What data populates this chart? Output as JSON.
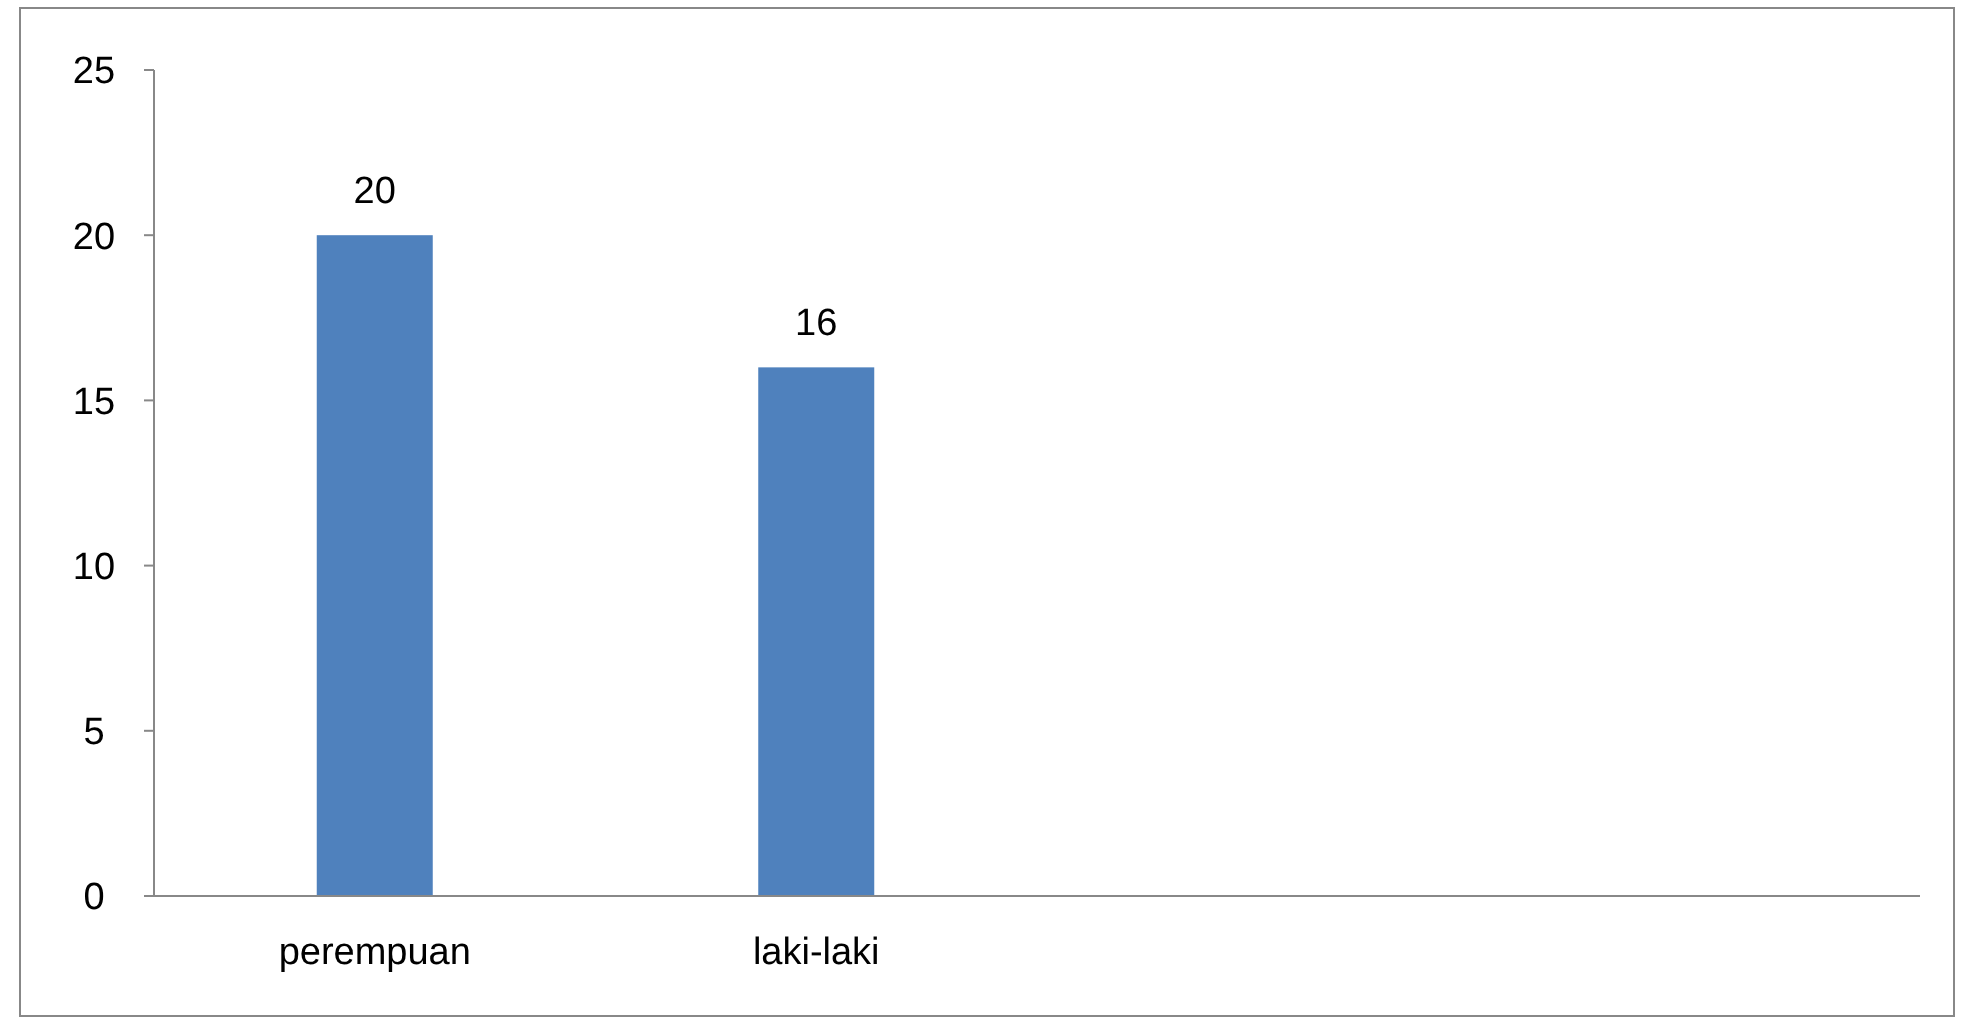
{
  "chart_data": {
    "type": "bar",
    "categories": [
      "perempuan",
      "laki-laki",
      null,
      null
    ],
    "values": [
      20,
      16,
      null,
      null
    ],
    "color": "#4f81bd",
    "ylim": [
      0,
      25
    ],
    "yticks": [
      0,
      5,
      10,
      15,
      20,
      25
    ],
    "data_labels": true
  }
}
